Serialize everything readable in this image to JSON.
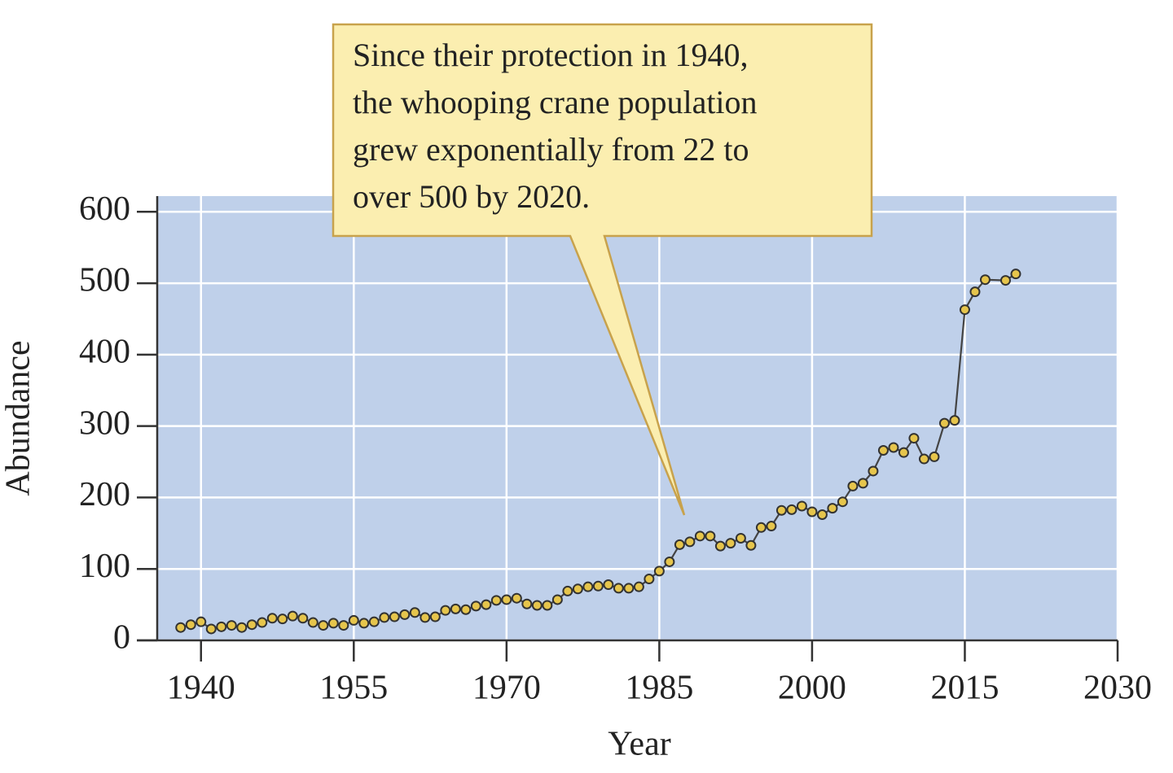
{
  "chart_data": {
    "type": "line",
    "annotation": [
      "Since their protection in 1940,",
      "the whooping crane population",
      "grew exponentially from 22 to",
      "over 500 by 2020."
    ],
    "x_label": "Year",
    "y_label": "Abundance",
    "x": [
      1938,
      1939,
      1940,
      1941,
      1942,
      1943,
      1944,
      1945,
      1946,
      1947,
      1948,
      1949,
      1950,
      1951,
      1952,
      1953,
      1954,
      1955,
      1956,
      1957,
      1958,
      1959,
      1960,
      1961,
      1962,
      1963,
      1964,
      1965,
      1966,
      1967,
      1968,
      1969,
      1970,
      1971,
      1972,
      1973,
      1974,
      1975,
      1976,
      1977,
      1978,
      1979,
      1980,
      1981,
      1982,
      1983,
      1984,
      1985,
      1986,
      1987,
      1988,
      1989,
      1990,
      1991,
      1992,
      1993,
      1994,
      1995,
      1996,
      1997,
      1998,
      1999,
      2000,
      2001,
      2002,
      2003,
      2004,
      2005,
      2006,
      2007,
      2008,
      2009,
      2010,
      2011,
      2012,
      2013,
      2014,
      2015,
      2016,
      2017,
      2019,
      2020
    ],
    "values": [
      18,
      22,
      26,
      16,
      19,
      21,
      18,
      22,
      25,
      31,
      30,
      34,
      31,
      25,
      21,
      24,
      21,
      28,
      24,
      26,
      32,
      33,
      36,
      39,
      32,
      33,
      42,
      44,
      43,
      48,
      50,
      56,
      57,
      59,
      51,
      49,
      49,
      57,
      69,
      72,
      75,
      76,
      78,
      73,
      73,
      75,
      86,
      97,
      110,
      134,
      138,
      146,
      146,
      132,
      136,
      143,
      133,
      158,
      160,
      182,
      183,
      188,
      180,
      176,
      185,
      194,
      216,
      220,
      237,
      266,
      270,
      263,
      283,
      254,
      257,
      304,
      308,
      463,
      488,
      505,
      504,
      513
    ],
    "color": "#e6c54c",
    "xlim": [
      1935.7,
      2030
    ],
    "xticks": [
      1940,
      1955,
      1970,
      1985,
      2000,
      2015,
      2030
    ],
    "ylim": [
      0,
      622
    ],
    "yticks": [
      0,
      100,
      200,
      300,
      400,
      500,
      600
    ],
    "grid": true
  }
}
